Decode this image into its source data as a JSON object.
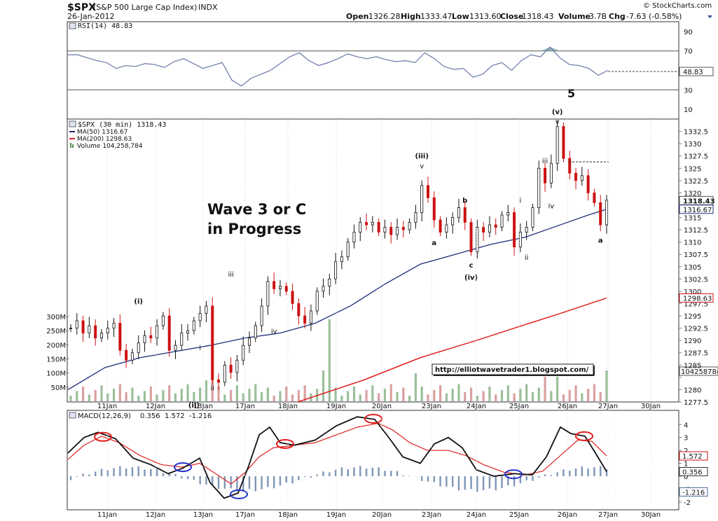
{
  "header": {
    "symbol": "$SPX",
    "name": "(S&P 500 Large Cap Index)",
    "exchange": "INDX",
    "date": "26-Jan-2012",
    "watermark": "© StockCharts.com",
    "open_label": "Open",
    "open": "1326.28",
    "high_label": "High",
    "high": "1333.47",
    "low_label": "Low",
    "low": "1313.60",
    "close_label": "Close",
    "close": "1318.43",
    "volume_label": "Volume",
    "volume": "3.7B",
    "chg_label": "Chg",
    "chg": "-7.63 (-0.58%)"
  },
  "colors": {
    "ma50": "#1f2d7a",
    "ma200": "#e02020",
    "up": "#111111",
    "down": "#cc1111",
    "volume": "#9bbf9b",
    "volume_down": "#d9a0a0",
    "macd_hist": "#7f95b5",
    "highlight": "#e02020",
    "wave_label": "#1a24a8"
  },
  "chart_data": [
    {
      "type": "line",
      "panel": "RSI",
      "legend": "RSI(14) 48.83",
      "yticks": [
        10,
        30,
        48.83,
        70,
        90
      ],
      "ylim": [
        0,
        100
      ],
      "last_value_label": "48.83",
      "x": [
        0,
        2,
        4,
        6,
        8,
        10,
        12,
        14,
        16,
        18,
        20,
        22,
        24,
        26,
        28,
        30,
        32,
        34,
        36,
        38,
        40,
        42,
        44,
        46,
        48,
        50,
        52,
        54,
        56,
        58,
        60,
        62,
        64,
        66,
        68,
        70,
        72,
        74,
        76,
        78,
        80,
        82,
        84,
        86,
        88,
        90,
        92,
        94,
        96,
        98,
        100,
        102,
        104,
        106,
        108,
        110,
        112
      ],
      "values": [
        66,
        66,
        63,
        60,
        58,
        52,
        55,
        54,
        57,
        56,
        53,
        59,
        62,
        57,
        52,
        55,
        58,
        40,
        34,
        42,
        46,
        50,
        57,
        64,
        68,
        60,
        55,
        58,
        62,
        67,
        64,
        62,
        64,
        61,
        59,
        60,
        58,
        68,
        62,
        54,
        51,
        52,
        43,
        46,
        55,
        58,
        50,
        60,
        66,
        64,
        74,
        63,
        56,
        55,
        52,
        45,
        50
      ]
    },
    {
      "type": "candlestick",
      "panel": "price",
      "legend": [
        "$SPX (30 min) 1318.43",
        "MA(50) 1316.67",
        "MA(200) 1298.63",
        "Volume 104,258,784"
      ],
      "ylim": [
        1277.5,
        1335
      ],
      "yticks": [
        1277.5,
        1280,
        1282.5,
        1285,
        1287.5,
        1290,
        1292.5,
        1295,
        1297.5,
        1300,
        1302.5,
        1305,
        1307.5,
        1310,
        1312.5,
        1315,
        1317.5,
        1320,
        1322.5,
        1325,
        1327.5,
        1330,
        1332.5
      ],
      "ytick_labels": [
        "1277.5",
        "1280",
        "",
        "1285",
        "1287.5",
        "1290",
        "1292.5",
        "1295",
        "1297.5",
        "1300",
        "1302.5",
        "1305",
        "1307.5",
        "1310",
        "1312.5",
        "1315",
        "",
        "1320",
        "1322.5",
        "1325",
        "1327.5",
        "1330",
        "1332.5"
      ],
      "price_tags": [
        {
          "label": "1318.43",
          "value": 1318.43
        },
        {
          "label": "1316.67",
          "value": 1316.67
        },
        {
          "label": "1298.63",
          "value": 1298.63
        }
      ],
      "volume_ticks": [
        "50M",
        "100M",
        "150M",
        "200M",
        "250M",
        "300M"
      ],
      "volume_tag": "104258784",
      "x_labels": [
        "11Jan",
        "12Jan",
        "13Jan",
        "17Jan",
        "18Jan",
        "19Jan",
        "20Jan",
        "23Jan",
        "24Jan",
        "25Jan",
        "26Jan",
        "27Jan",
        "30Jan"
      ],
      "closes": [
        1292.5,
        1294,
        1291.5,
        1293,
        1290.5,
        1291.5,
        1292.5,
        1293.5,
        1288,
        1286,
        1287.5,
        1289.5,
        1291,
        1290.5,
        1293,
        1295,
        1288,
        1289,
        1291.5,
        1292,
        1294,
        1295.5,
        1297,
        1282,
        1281.5,
        1285,
        1283.5,
        1286,
        1289,
        1290.5,
        1293,
        1297,
        1302,
        1300.5,
        1301,
        1300,
        1297.5,
        1295,
        1293.5,
        1296,
        1300,
        1301,
        1302.5,
        1306,
        1307,
        1310,
        1312,
        1314,
        1313.5,
        1314,
        1312,
        1313,
        1311.5,
        1313,
        1312.5,
        1314,
        1316,
        1321.5,
        1319,
        1314.5,
        1312,
        1313.5,
        1315,
        1317,
        1314,
        1308,
        1313,
        1312,
        1313.5,
        1313,
        1315.5,
        1316,
        1309,
        1312,
        1313,
        1317,
        1325,
        1322,
        1326,
        1333.5,
        1327,
        1324,
        1322.5,
        1323.5,
        1320,
        1318,
        1313.5,
        1318.5
      ],
      "wave_labels": [
        {
          "text": "(i)",
          "idx": 11,
          "value": 1297.5,
          "pos": "above"
        },
        {
          "text": "(ii)",
          "idx": 20,
          "value": 1277.5,
          "pos": "below"
        },
        {
          "text": "iii",
          "idx": 26,
          "value": 1303,
          "pos": "above"
        },
        {
          "text": "i",
          "idx": 21,
          "value": 1288,
          "pos": "above"
        },
        {
          "text": "ii",
          "idx": 23,
          "value": 1281,
          "pos": "below"
        },
        {
          "text": "iv",
          "idx": 33,
          "value": 1292.5,
          "pos": "below"
        },
        {
          "text": "(iii)",
          "idx": 57,
          "value": 1327,
          "pos": "above"
        },
        {
          "text": "v",
          "idx": 57,
          "value": 1325,
          "pos": "above"
        },
        {
          "text": "a",
          "idx": 59,
          "value": 1310.5,
          "pos": "below"
        },
        {
          "text": "b",
          "idx": 64,
          "value": 1318,
          "pos": "above"
        },
        {
          "text": "c",
          "idx": 65,
          "value": 1306,
          "pos": "below"
        },
        {
          "text": "(iv)",
          "idx": 65,
          "value": 1303.5,
          "pos": "below"
        },
        {
          "text": "i",
          "idx": 73,
          "value": 1318,
          "pos": "above"
        },
        {
          "text": "ii",
          "idx": 74,
          "value": 1307.5,
          "pos": "below"
        },
        {
          "text": "iii",
          "idx": 77,
          "value": 1326,
          "pos": "above"
        },
        {
          "text": "iv",
          "idx": 78,
          "value": 1318,
          "pos": "below"
        },
        {
          "text": "v",
          "idx": 79,
          "value": 1334,
          "pos": "above"
        },
        {
          "text": "(v)",
          "idx": 79,
          "value": 1336,
          "pos": "above"
        },
        {
          "text": "a",
          "idx": 86,
          "value": 1311,
          "pos": "below"
        }
      ],
      "wave5_label": "5",
      "annotation": [
        "Wave 3 or C",
        "in Progress"
      ],
      "url_box": "http://elliotwavetrader1.blogspot.com/"
    },
    {
      "type": "line",
      "panel": "MACD",
      "legend": [
        "MACD(12,26,9)",
        "0.356",
        "1.572",
        "-1.216"
      ],
      "yticks": [
        4,
        3,
        2,
        1,
        0,
        -1,
        -2
      ],
      "ytick_labels": [
        "4",
        "3",
        "2",
        "1",
        "0",
        "-1",
        "-2"
      ],
      "ylim": [
        -2.6,
        5.1
      ],
      "tags": [
        {
          "label": "1.572",
          "value": 1.572
        },
        {
          "label": "0.356",
          "value": 0.356
        },
        {
          "label": "-1.216",
          "value": -1.216
        }
      ],
      "x_labels": [
        "11Jan",
        "12Jan",
        "13Jan",
        "17Jan",
        "18Jan",
        "19Jan",
        "20Jan",
        "23Jan",
        "24Jan",
        "25Jan",
        "26Jan",
        "27Jan",
        "30Jan"
      ]
    }
  ]
}
